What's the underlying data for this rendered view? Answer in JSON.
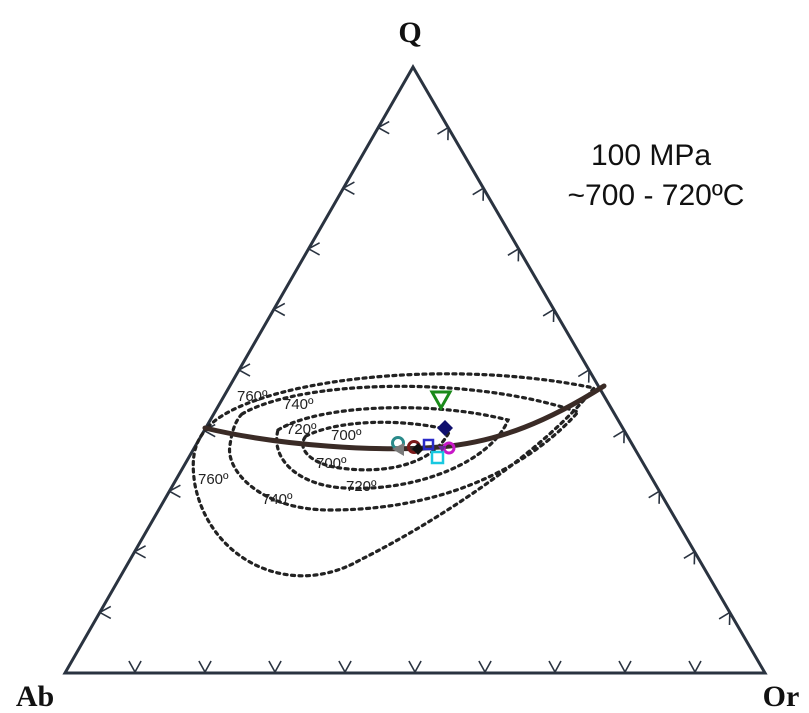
{
  "vertices": {
    "top": "Q",
    "left": "Ab",
    "right": "Or"
  },
  "conditions": {
    "pressure": "100 MPa",
    "temperature": "~700 - 720ºC"
  },
  "isotherm_labels": {
    "outer_upper": "760º",
    "outer_lower": "760º",
    "mid_upper": "740º",
    "mid_lower": "740º",
    "inner_upper": "720º",
    "inner_lower": "720º",
    "core_upper": "700º",
    "core_lower": "700º"
  },
  "sample_colors": {
    "green_triangle": "#1a8a1a",
    "navy_diamond": "#10106e",
    "teal_circle": "#2a8a8a",
    "gray_marker": "#7a7a7a",
    "darkred_circle": "#7a1a1a",
    "black_diamond": "#111111",
    "blue_square": "#2a2ac8",
    "magenta_circle": "#c818c8",
    "cyan_square": "#18c8e0",
    "purple_marker": "#6a2a9a"
  }
}
